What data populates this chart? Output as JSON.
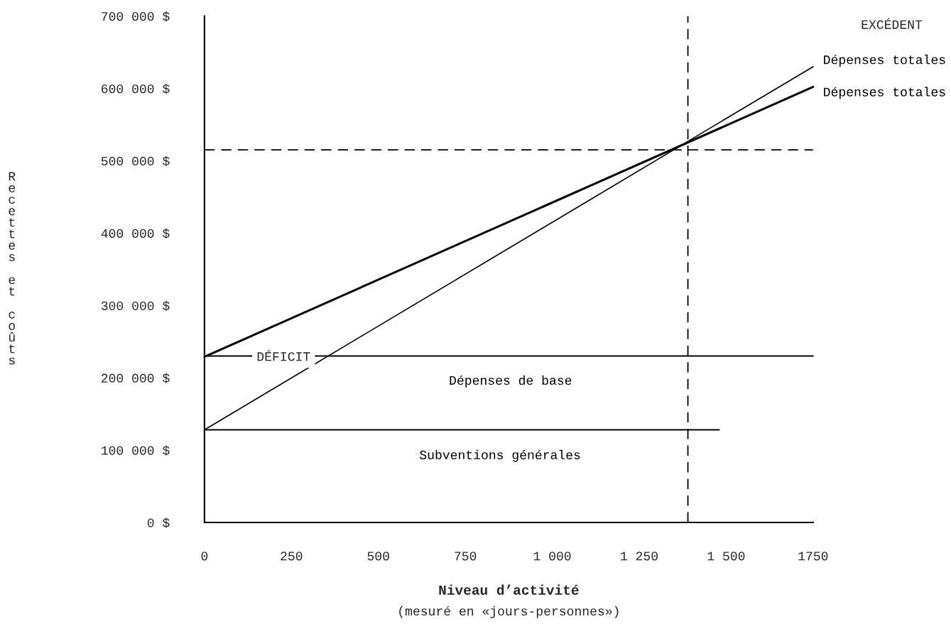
{
  "chart_data": {
    "type": "line",
    "xlabel": "Niveau d’activité",
    "ylabel": "Recettes et coûts",
    "xlim": [
      0,
      1750
    ],
    "ylim": [
      0,
      700000
    ],
    "xticks": [
      0,
      250,
      500,
      750,
      {
        "value": 1000,
        "label": "1 000"
      },
      {
        "value": 1250,
        "label": "1 250"
      },
      {
        "value": 1500,
        "label": "1 500"
      },
      1750
    ],
    "yticks": [
      {
        "value": 0,
        "label": "0 $"
      },
      {
        "value": 100000,
        "label": "100 000 $"
      },
      {
        "value": 200000,
        "label": "200 000 $"
      },
      {
        "value": 300000,
        "label": "300 000 $"
      },
      {
        "value": 400000,
        "label": "400 000 $"
      },
      {
        "value": 500000,
        "label": "500 000 $"
      },
      {
        "value": 600000,
        "label": "600 000 $"
      },
      {
        "value": 700000,
        "label": "700 000 $"
      }
    ],
    "series": [
      {
        "name": "Dépenses totales",
        "color": "#000000",
        "x": [
          0,
          1750
        ],
        "values": [
          229000,
          602000
        ]
      },
      {
        "name": "Dépenses totales",
        "color": "#000000",
        "x": [
          0,
          1750
        ],
        "values": [
          128000,
          630000
        ]
      },
      {
        "name": "Dépenses de base",
        "color": "#000000",
        "x": [
          0,
          1750
        ],
        "values": [
          230000,
          230000
        ]
      },
      {
        "name": "Subventions générales",
        "color": "#000000",
        "x": [
          0,
          1480
        ],
        "values": [
          128000,
          128000
        ]
      }
    ],
    "ref_lines": [
      {
        "axis": "y",
        "value": 515000,
        "color": "#000000",
        "line_style": "dashed"
      },
      {
        "axis": "x",
        "value": 1390,
        "color": "#000000",
        "line_style": "dashed"
      }
    ],
    "annotations": [
      {
        "text": "DÉFICIT",
        "x": 150,
        "y": 228000
      },
      "EXCÉDENT",
      "(mesuré en «jours-personnes»)"
    ],
    "grid": false,
    "legend": false,
    "marker": "none",
    "line_style": "solid"
  }
}
